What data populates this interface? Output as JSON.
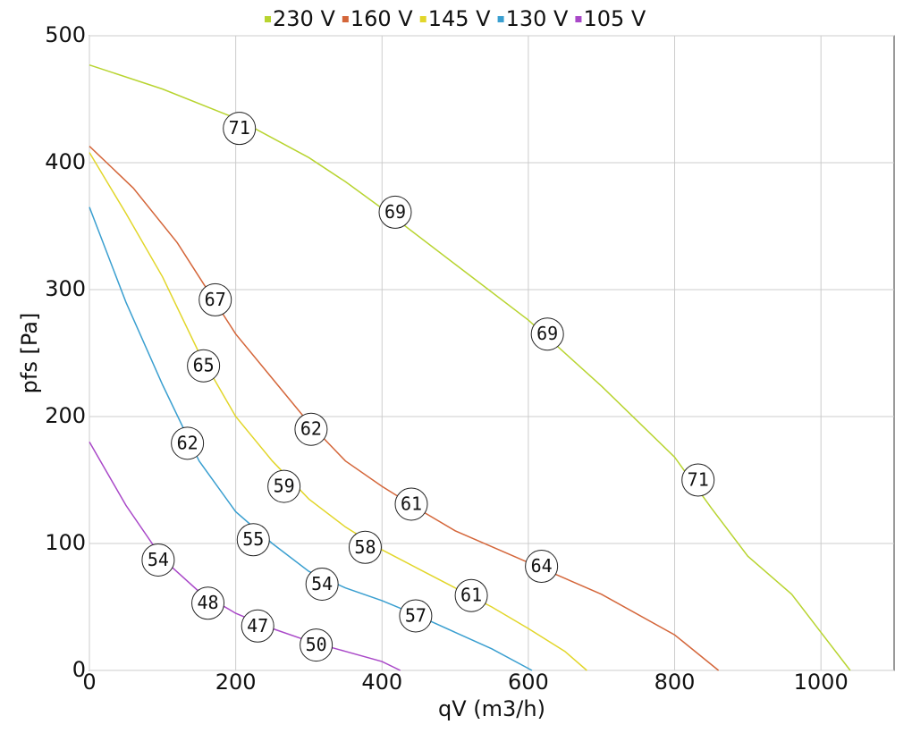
{
  "chart_data": {
    "type": "line",
    "xlabel": "qV (m3/h)",
    "ylabel": "pfs [Pa]",
    "xlim": [
      0,
      1100
    ],
    "ylim": [
      0,
      500
    ],
    "xticks": [
      0,
      200,
      400,
      600,
      800,
      1000
    ],
    "yticks": [
      0,
      100,
      200,
      300,
      400,
      500
    ],
    "grid": true,
    "legend": "top",
    "series": [
      {
        "name": "230 V",
        "color": "#b8d430",
        "x": [
          0,
          100,
          200,
          300,
          350,
          400,
          500,
          600,
          700,
          800,
          850,
          900,
          960,
          1000,
          1040
        ],
        "values": [
          477,
          458,
          435,
          404,
          385,
          364,
          320,
          276,
          224,
          168,
          128,
          90,
          60,
          30,
          0
        ],
        "annotations": [
          {
            "x": 205,
            "y": 427,
            "label": "71"
          },
          {
            "x": 418,
            "y": 361,
            "label": "69"
          },
          {
            "x": 626,
            "y": 265,
            "label": "69"
          },
          {
            "x": 832,
            "y": 150,
            "label": "71"
          }
        ]
      },
      {
        "name": "160 V",
        "color": "#d4663a",
        "x": [
          0,
          60,
          120,
          150,
          200,
          250,
          300,
          350,
          400,
          450,
          500,
          600,
          700,
          800,
          860
        ],
        "values": [
          413,
          380,
          337,
          310,
          265,
          230,
          195,
          165,
          145,
          127,
          110,
          85,
          60,
          28,
          0
        ],
        "annotations": [
          {
            "x": 172,
            "y": 292,
            "label": "67"
          },
          {
            "x": 303,
            "y": 190,
            "label": "62"
          },
          {
            "x": 440,
            "y": 131,
            "label": "61"
          },
          {
            "x": 618,
            "y": 82,
            "label": "64"
          }
        ]
      },
      {
        "name": "145 V",
        "color": "#e2d62a",
        "x": [
          0,
          50,
          100,
          150,
          200,
          250,
          300,
          350,
          400,
          450,
          500,
          550,
          600,
          650,
          680
        ],
        "values": [
          408,
          360,
          310,
          250,
          200,
          165,
          135,
          113,
          95,
          80,
          65,
          50,
          33,
          15,
          0
        ],
        "annotations": [
          {
            "x": 156,
            "y": 240,
            "label": "65"
          },
          {
            "x": 266,
            "y": 145,
            "label": "59"
          },
          {
            "x": 377,
            "y": 97,
            "label": "58"
          },
          {
            "x": 522,
            "y": 59,
            "label": "61"
          }
        ]
      },
      {
        "name": "130 V",
        "color": "#3a9fd0",
        "x": [
          0,
          50,
          100,
          150,
          200,
          250,
          300,
          350,
          400,
          450,
          500,
          550,
          605
        ],
        "values": [
          365,
          290,
          225,
          165,
          125,
          100,
          78,
          65,
          55,
          43,
          30,
          17,
          0
        ],
        "annotations": [
          {
            "x": 134,
            "y": 179,
            "label": "62"
          },
          {
            "x": 224,
            "y": 103,
            "label": "55"
          },
          {
            "x": 318,
            "y": 68,
            "label": "54"
          },
          {
            "x": 446,
            "y": 43,
            "label": "57"
          }
        ]
      },
      {
        "name": "105 V",
        "color": "#a948c8",
        "x": [
          0,
          50,
          100,
          150,
          200,
          250,
          300,
          350,
          400,
          425
        ],
        "values": [
          180,
          130,
          88,
          62,
          45,
          33,
          23,
          15,
          7,
          0
        ],
        "annotations": [
          {
            "x": 94,
            "y": 87,
            "label": "54"
          },
          {
            "x": 162,
            "y": 53,
            "label": "48"
          },
          {
            "x": 230,
            "y": 35,
            "label": "47"
          },
          {
            "x": 310,
            "y": 20,
            "label": "50"
          }
        ]
      }
    ]
  }
}
